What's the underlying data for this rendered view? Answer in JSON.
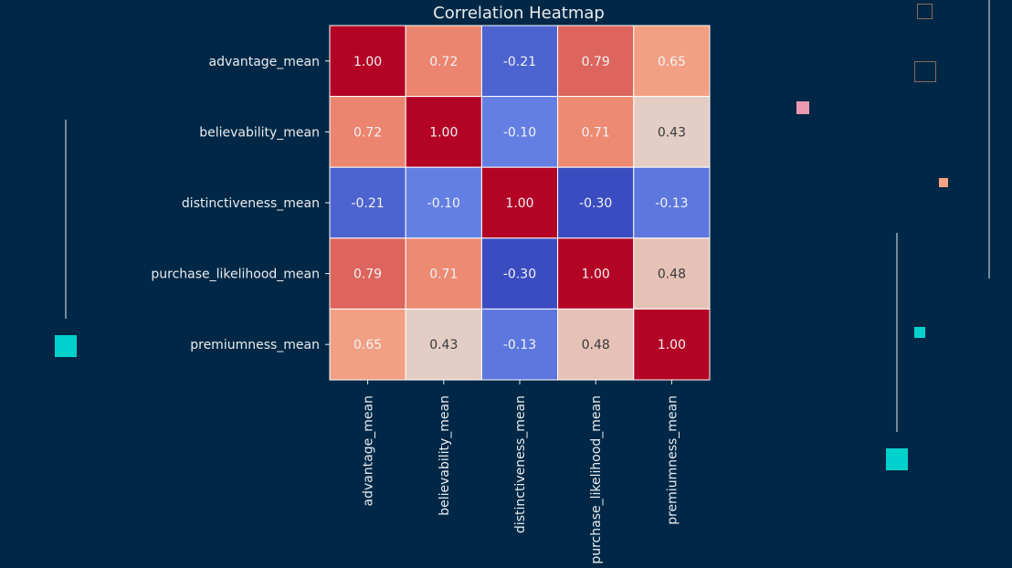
{
  "chart_data": {
    "type": "heatmap",
    "title": "Correlation Heatmap",
    "rows": [
      "advantage_mean",
      "believability_mean",
      "distinctiveness_mean",
      "purchase_likelihood_mean",
      "premiumness_mean"
    ],
    "columns": [
      "advantage_mean",
      "believability_mean",
      "distinctiveness_mean",
      "purchase_likelihood_mean",
      "premiumness_mean"
    ],
    "values": [
      [
        1.0,
        0.72,
        -0.21,
        0.79,
        0.65
      ],
      [
        0.72,
        1.0,
        -0.1,
        0.71,
        0.43
      ],
      [
        -0.21,
        -0.1,
        1.0,
        -0.3,
        -0.13
      ],
      [
        0.79,
        0.71,
        -0.3,
        1.0,
        0.48
      ],
      [
        0.65,
        0.43,
        -0.13,
        0.48,
        1.0
      ]
    ],
    "value_format": "0.00",
    "colormap": "coolwarm",
    "grid": true
  },
  "colors": {
    "background": "#002846",
    "text": "#e9ecef",
    "cell_border": "#ffffff",
    "cell_text_light": "#f1f3f5",
    "cell_text_dark": "#3a3a3a",
    "deco_cyan": "#00d1cd",
    "deco_pink": "#e79ab1",
    "deco_orange": "#f6a285",
    "deco_outline": "#8a6a5a",
    "deco_line": "#e9ecef"
  }
}
